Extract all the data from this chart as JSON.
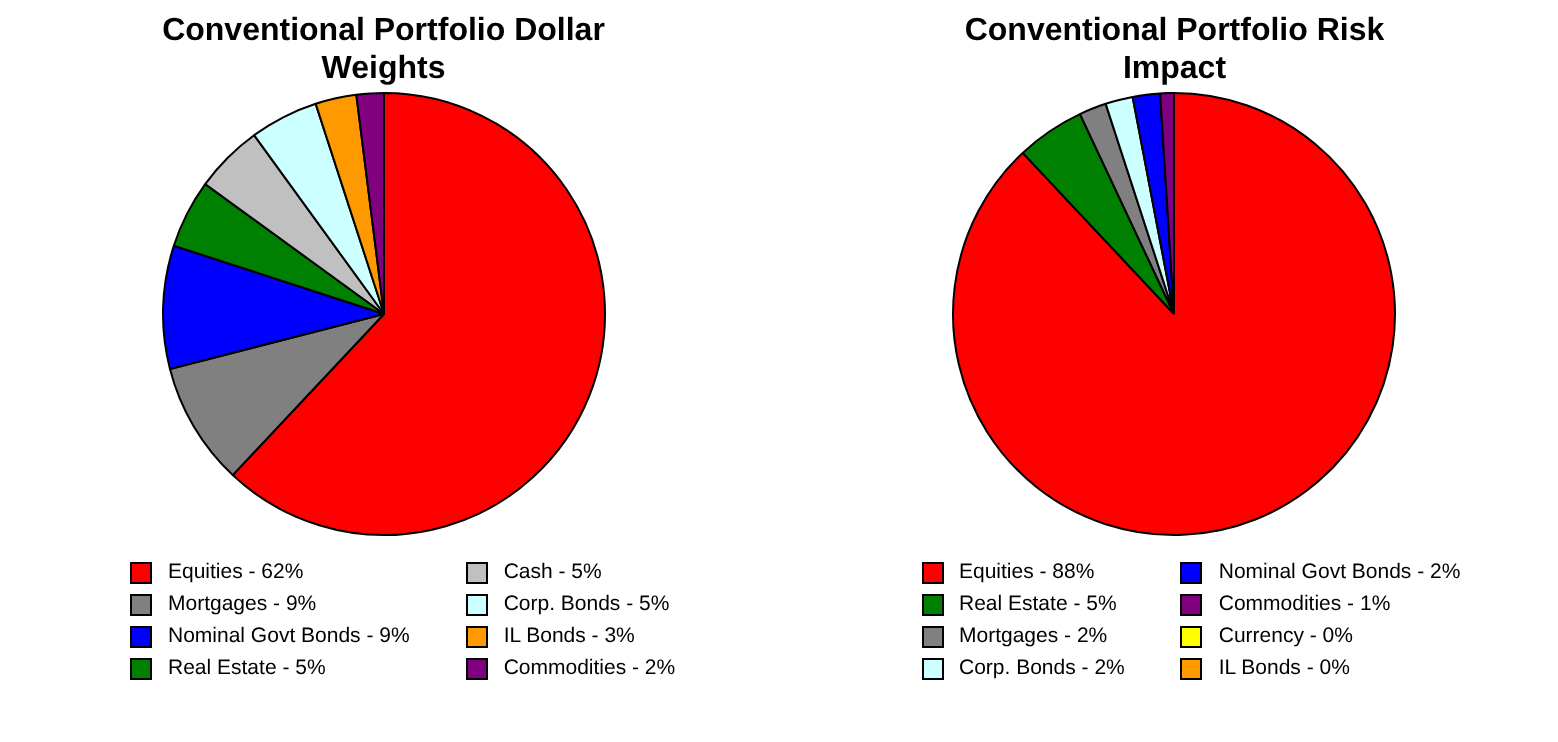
{
  "chart_data": [
    {
      "type": "pie",
      "title": "Conventional Portfolio Dollar Weights",
      "categories": [
        "Equities - 62%",
        "Mortgages - 9%",
        "Nominal Govt Bonds - 9%",
        "Real Estate - 5%",
        "Cash - 5%",
        "Corp. Bonds - 5%",
        "IL Bonds - 3%",
        "Commodities - 2%"
      ],
      "values": [
        62,
        9,
        9,
        5,
        5,
        5,
        3,
        2
      ],
      "colors": [
        "#ff0000",
        "#808080",
        "#0000ff",
        "#008000",
        "#c0c0c0",
        "#ccffff",
        "#ff9900",
        "#800080"
      ],
      "legend": "bottom"
    },
    {
      "type": "pie",
      "title": "Conventional Portfolio Risk Impact",
      "categories": [
        "Equities - 88%",
        "Real Estate - 5%",
        "Mortgages - 2%",
        "Corp. Bonds - 2%",
        "Nominal Govt Bonds - 2%",
        "Commodities - 1%",
        "Currency - 0%",
        "IL Bonds - 0%"
      ],
      "values": [
        88,
        5,
        2,
        2,
        2,
        1,
        0,
        0
      ],
      "colors": [
        "#ff0000",
        "#008000",
        "#808080",
        "#ccffff",
        "#0000ff",
        "#800080",
        "#ffff00",
        "#ff9900"
      ],
      "legend": "bottom"
    }
  ]
}
